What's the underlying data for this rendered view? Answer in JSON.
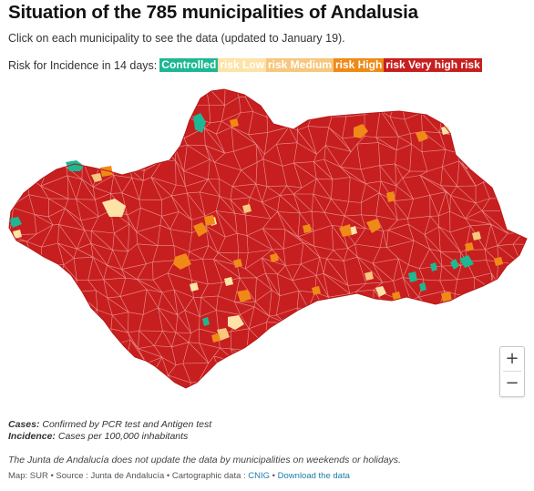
{
  "title": "Situation of the 785 municipalities of Andalusia",
  "subtitle": "Click on each municipality to see the data (updated to January 19).",
  "legend": {
    "label": "Risk for Incidence in 14 days:",
    "items": [
      {
        "label": "Controlled",
        "color": "#1db893",
        "text_color": "#ffffff"
      },
      {
        "label": "risk Low",
        "color": "#fde3a7",
        "text_color": "#ffffff"
      },
      {
        "label": "risk Medium",
        "color": "#f6c77d",
        "text_color": "#ffffff"
      },
      {
        "label": "risk High",
        "color": "#ef8a17",
        "text_color": "#ffffff"
      },
      {
        "label": "risk Very high risk",
        "color": "#c71f1f",
        "text_color": "#ffffff"
      }
    ]
  },
  "map": {
    "region": "Andalusia",
    "base_color": "#c71f1f",
    "border_color": "#f3b4b4",
    "zoom_in": "+",
    "zoom_out": "−"
  },
  "notes": {
    "cases_term": "Cases:",
    "cases_def": " Confirmed by PCR test and Antigen test",
    "incidence_term": "Incidence:",
    "incidence_def": " Cases per 100,000 inhabitants",
    "weekend": "The Junta de Andalucía does not update the data by municipalities on weekends or holidays."
  },
  "source": {
    "prefix": "Map: SUR • Source : Junta de Andalucía • Cartographic data : ",
    "cnig": "CNIG",
    "separator": " • ",
    "download": "Download the data"
  }
}
